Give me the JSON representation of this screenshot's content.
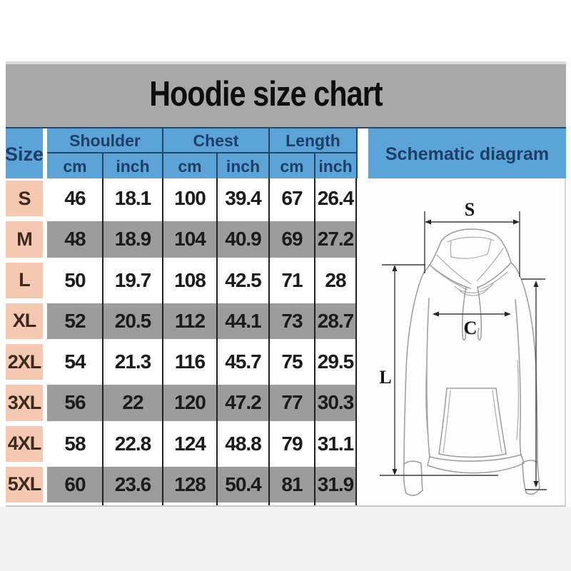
{
  "title": "Hoodie size chart",
  "table": {
    "size_header": "Size",
    "schematic_header": "Schematic diagram",
    "groups": [
      {
        "label": "Shoulder"
      },
      {
        "label": "Chest"
      },
      {
        "label": "Length"
      }
    ],
    "unit_headers": [
      "cm",
      "inch",
      "cm",
      "inch",
      "cm",
      "inch"
    ]
  },
  "schematic": {
    "shoulder_label": "S",
    "chest_label": "C",
    "length_label": "L"
  },
  "colors": {
    "header_blue": "#5ca4d8",
    "header_text_navy": "#1d3e66",
    "title_band_gray": "#a9a9a9",
    "row_gray": "#9c9c9c",
    "size_col_peach": "#f5c8b2"
  },
  "chart_data": {
    "type": "table",
    "title": "Hoodie size chart",
    "columns": [
      "Size",
      "Shoulder cm",
      "Shoulder inch",
      "Chest cm",
      "Chest inch",
      "Length cm",
      "Length inch"
    ],
    "rows": [
      [
        "S",
        "46",
        "18.1",
        "100",
        "39.4",
        "67",
        "26.4"
      ],
      [
        "M",
        "48",
        "18.9",
        "104",
        "40.9",
        "69",
        "27.2"
      ],
      [
        "L",
        "50",
        "19.7",
        "108",
        "42.5",
        "71",
        "28"
      ],
      [
        "XL",
        "52",
        "20.5",
        "112",
        "44.1",
        "73",
        "28.7"
      ],
      [
        "2XL",
        "54",
        "21.3",
        "116",
        "45.7",
        "75",
        "29.5"
      ],
      [
        "3XL",
        "56",
        "22",
        "120",
        "47.2",
        "77",
        "30.3"
      ],
      [
        "4XL",
        "58",
        "22.8",
        "124",
        "48.8",
        "79",
        "31.1"
      ],
      [
        "5XL",
        "60",
        "23.6",
        "128",
        "50.4",
        "81",
        "31.9"
      ]
    ]
  }
}
